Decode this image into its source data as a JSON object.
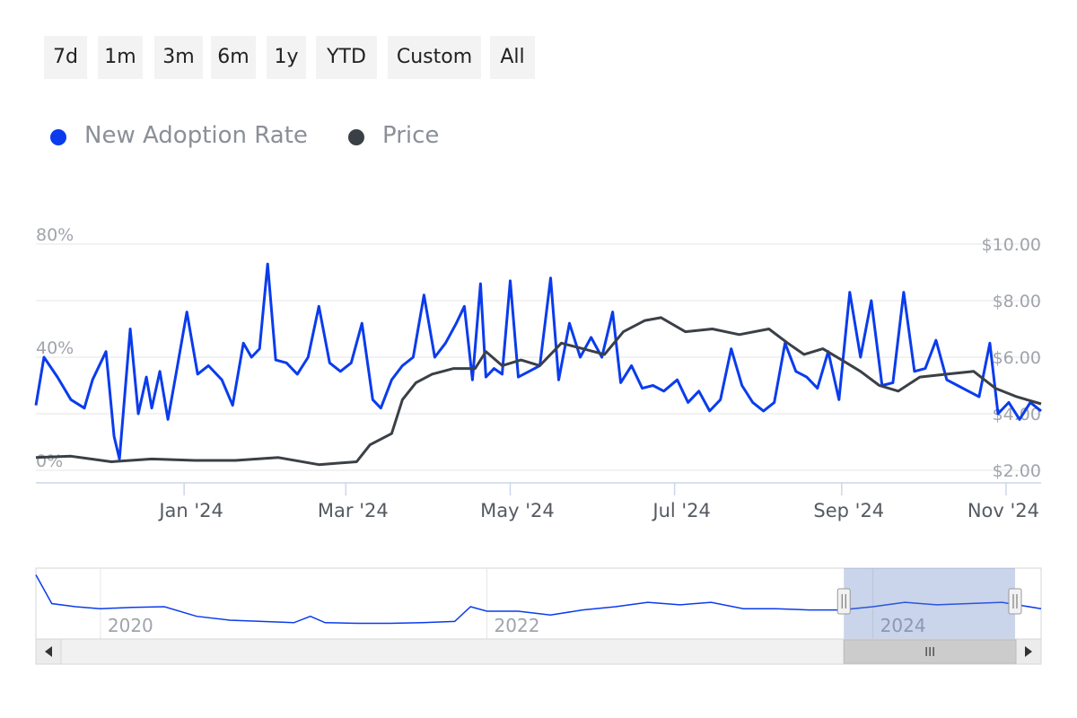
{
  "range_buttons": [
    "7d",
    "1m",
    "3m",
    "6m",
    "1y",
    "YTD",
    "Custom",
    "All"
  ],
  "legend": [
    {
      "label": "New Adoption Rate",
      "color": "#0a3ced"
    },
    {
      "label": "Price",
      "color": "#3b4047"
    }
  ],
  "colors": {
    "adoption": "#0a3ced",
    "price": "#3b4047",
    "grid": "#e6e6e6",
    "axis_label": "#a0a4ab",
    "navigator_mask": "rgba(102,133,194,0.35)",
    "scrollbar": "#f1f1f1"
  },
  "chart_data": {
    "type": "line",
    "x_range": [
      "2023-11-07",
      "2024-11-14"
    ],
    "x_ticks": [
      {
        "date": "2024-01-01",
        "label": "Jan '24"
      },
      {
        "date": "2024-03-01",
        "label": "Mar '24"
      },
      {
        "date": "2024-05-01",
        "label": "May '24"
      },
      {
        "date": "2024-07-01",
        "label": "Jul '24"
      },
      {
        "date": "2024-09-01",
        "label": "Sep '24"
      },
      {
        "date": "2024-11-01",
        "label": "Nov '24"
      }
    ],
    "y_left": {
      "min": 0,
      "max": 80,
      "ticks": [
        0,
        40,
        80
      ],
      "tick_labels": [
        "0%",
        "40%",
        "80%"
      ]
    },
    "y_right": {
      "min": 2,
      "max": 10,
      "ticks": [
        2,
        4,
        6,
        8,
        10
      ],
      "tick_labels": [
        "$2.00",
        "$4.00",
        "$6.00",
        "$8.00",
        "$10.00"
      ]
    },
    "grid": true,
    "legend_position": "top-left",
    "series": [
      {
        "name": "New Adoption Rate",
        "axis": "left",
        "unit": "%",
        "points": [
          [
            "2023-11-07",
            23
          ],
          [
            "2023-11-10",
            40
          ],
          [
            "2023-11-15",
            33
          ],
          [
            "2023-11-20",
            25
          ],
          [
            "2023-11-25",
            22
          ],
          [
            "2023-11-28",
            32
          ],
          [
            "2023-12-03",
            42
          ],
          [
            "2023-12-06",
            12
          ],
          [
            "2023-12-08",
            4
          ],
          [
            "2023-12-12",
            50
          ],
          [
            "2023-12-15",
            20
          ],
          [
            "2023-12-18",
            33
          ],
          [
            "2023-12-20",
            22
          ],
          [
            "2023-12-23",
            35
          ],
          [
            "2023-12-26",
            18
          ],
          [
            "2023-12-29",
            34
          ],
          [
            "2024-01-02",
            56
          ],
          [
            "2024-01-06",
            34
          ],
          [
            "2024-01-10",
            37
          ],
          [
            "2024-01-15",
            32
          ],
          [
            "2024-01-19",
            23
          ],
          [
            "2024-01-23",
            45
          ],
          [
            "2024-01-26",
            40
          ],
          [
            "2024-01-29",
            43
          ],
          [
            "2024-02-01",
            73
          ],
          [
            "2024-02-04",
            39
          ],
          [
            "2024-02-08",
            38
          ],
          [
            "2024-02-12",
            34
          ],
          [
            "2024-02-16",
            40
          ],
          [
            "2024-02-20",
            58
          ],
          [
            "2024-02-24",
            38
          ],
          [
            "2024-02-28",
            35
          ],
          [
            "2024-03-03",
            38
          ],
          [
            "2024-03-07",
            52
          ],
          [
            "2024-03-11",
            25
          ],
          [
            "2024-03-14",
            22
          ],
          [
            "2024-03-18",
            32
          ],
          [
            "2024-03-22",
            37
          ],
          [
            "2024-03-26",
            40
          ],
          [
            "2024-03-30",
            62
          ],
          [
            "2024-04-03",
            40
          ],
          [
            "2024-04-07",
            45
          ],
          [
            "2024-04-11",
            52
          ],
          [
            "2024-04-14",
            58
          ],
          [
            "2024-04-17",
            32
          ],
          [
            "2024-04-20",
            66
          ],
          [
            "2024-04-22",
            33
          ],
          [
            "2024-04-25",
            36
          ],
          [
            "2024-04-28",
            34
          ],
          [
            "2024-05-01",
            67
          ],
          [
            "2024-05-04",
            33
          ],
          [
            "2024-05-08",
            35
          ],
          [
            "2024-05-12",
            37
          ],
          [
            "2024-05-16",
            68
          ],
          [
            "2024-05-19",
            32
          ],
          [
            "2024-05-23",
            52
          ],
          [
            "2024-05-27",
            40
          ],
          [
            "2024-05-31",
            47
          ],
          [
            "2024-06-04",
            40
          ],
          [
            "2024-06-08",
            56
          ],
          [
            "2024-06-11",
            31
          ],
          [
            "2024-06-15",
            37
          ],
          [
            "2024-06-19",
            29
          ],
          [
            "2024-06-23",
            30
          ],
          [
            "2024-06-27",
            28
          ],
          [
            "2024-07-02",
            32
          ],
          [
            "2024-07-06",
            24
          ],
          [
            "2024-07-10",
            28
          ],
          [
            "2024-07-14",
            21
          ],
          [
            "2024-07-18",
            25
          ],
          [
            "2024-07-22",
            43
          ],
          [
            "2024-07-26",
            30
          ],
          [
            "2024-07-30",
            24
          ],
          [
            "2024-08-03",
            21
          ],
          [
            "2024-08-07",
            24
          ],
          [
            "2024-08-11",
            45
          ],
          [
            "2024-08-15",
            35
          ],
          [
            "2024-08-19",
            33
          ],
          [
            "2024-08-23",
            29
          ],
          [
            "2024-08-27",
            42
          ],
          [
            "2024-08-31",
            25
          ],
          [
            "2024-09-04",
            63
          ],
          [
            "2024-09-08",
            40
          ],
          [
            "2024-09-12",
            60
          ],
          [
            "2024-09-16",
            30
          ],
          [
            "2024-09-20",
            31
          ],
          [
            "2024-09-24",
            63
          ],
          [
            "2024-09-28",
            35
          ],
          [
            "2024-10-02",
            36
          ],
          [
            "2024-10-06",
            46
          ],
          [
            "2024-10-10",
            32
          ],
          [
            "2024-10-14",
            30
          ],
          [
            "2024-10-18",
            28
          ],
          [
            "2024-10-22",
            26
          ],
          [
            "2024-10-26",
            45
          ],
          [
            "2024-10-29",
            20
          ],
          [
            "2024-11-02",
            24
          ],
          [
            "2024-11-06",
            18
          ],
          [
            "2024-11-10",
            24
          ],
          [
            "2024-11-14",
            21
          ]
        ]
      },
      {
        "name": "Price",
        "axis": "right",
        "unit": "$",
        "points": [
          [
            "2023-11-07",
            2.45
          ],
          [
            "2023-11-20",
            2.5
          ],
          [
            "2023-12-05",
            2.3
          ],
          [
            "2023-12-20",
            2.4
          ],
          [
            "2024-01-05",
            2.35
          ],
          [
            "2024-01-20",
            2.35
          ],
          [
            "2024-02-05",
            2.45
          ],
          [
            "2024-02-20",
            2.2
          ],
          [
            "2024-03-05",
            2.3
          ],
          [
            "2024-03-10",
            2.9
          ],
          [
            "2024-03-18",
            3.3
          ],
          [
            "2024-03-22",
            4.5
          ],
          [
            "2024-03-27",
            5.1
          ],
          [
            "2024-04-02",
            5.4
          ],
          [
            "2024-04-10",
            5.6
          ],
          [
            "2024-04-18",
            5.6
          ],
          [
            "2024-04-22",
            6.2
          ],
          [
            "2024-04-28",
            5.7
          ],
          [
            "2024-05-05",
            5.9
          ],
          [
            "2024-05-12",
            5.7
          ],
          [
            "2024-05-20",
            6.5
          ],
          [
            "2024-05-28",
            6.3
          ],
          [
            "2024-06-05",
            6.1
          ],
          [
            "2024-06-12",
            6.9
          ],
          [
            "2024-06-20",
            7.3
          ],
          [
            "2024-06-26",
            7.4
          ],
          [
            "2024-07-05",
            6.9
          ],
          [
            "2024-07-15",
            7.0
          ],
          [
            "2024-07-25",
            6.8
          ],
          [
            "2024-08-05",
            7.0
          ],
          [
            "2024-08-12",
            6.5
          ],
          [
            "2024-08-18",
            6.1
          ],
          [
            "2024-08-25",
            6.3
          ],
          [
            "2024-09-01",
            5.9
          ],
          [
            "2024-09-08",
            5.5
          ],
          [
            "2024-09-15",
            5.0
          ],
          [
            "2024-09-22",
            4.8
          ],
          [
            "2024-09-30",
            5.3
          ],
          [
            "2024-10-10",
            5.4
          ],
          [
            "2024-10-20",
            5.5
          ],
          [
            "2024-10-28",
            4.9
          ],
          [
            "2024-11-05",
            4.6
          ],
          [
            "2024-11-14",
            4.35
          ]
        ]
      }
    ],
    "navigator": {
      "x_ticks": [
        {
          "date": "2020-01-01",
          "label": "2020"
        },
        {
          "date": "2022-01-01",
          "label": "2022"
        },
        {
          "date": "2024-01-01",
          "label": "2024"
        }
      ],
      "x_range": [
        "2019-09-01",
        "2024-11-14"
      ],
      "selection": [
        "2023-11-07",
        "2024-11-14"
      ],
      "series": [
        {
          "name": "New Adoption Rate",
          "points": [
            [
              "2019-09-01",
              95
            ],
            [
              "2019-10-01",
              50
            ],
            [
              "2019-11-15",
              45
            ],
            [
              "2020-01-01",
              42
            ],
            [
              "2020-03-01",
              44
            ],
            [
              "2020-05-01",
              45
            ],
            [
              "2020-07-01",
              30
            ],
            [
              "2020-09-01",
              24
            ],
            [
              "2020-11-01",
              22
            ],
            [
              "2021-01-01",
              20
            ],
            [
              "2021-02-01",
              30
            ],
            [
              "2021-03-01",
              20
            ],
            [
              "2021-05-01",
              19
            ],
            [
              "2021-07-01",
              19
            ],
            [
              "2021-09-01",
              20
            ],
            [
              "2021-11-01",
              22
            ],
            [
              "2021-12-01",
              45
            ],
            [
              "2022-01-01",
              38
            ],
            [
              "2022-03-01",
              38
            ],
            [
              "2022-05-01",
              32
            ],
            [
              "2022-07-01",
              40
            ],
            [
              "2022-09-01",
              45
            ],
            [
              "2022-11-01",
              52
            ],
            [
              "2023-01-01",
              48
            ],
            [
              "2023-03-01",
              52
            ],
            [
              "2023-05-01",
              42
            ],
            [
              "2023-07-01",
              42
            ],
            [
              "2023-09-01",
              40
            ],
            [
              "2023-11-01",
              40
            ],
            [
              "2024-01-01",
              45
            ],
            [
              "2024-03-01",
              52
            ],
            [
              "2024-05-01",
              48
            ],
            [
              "2024-07-01",
              50
            ],
            [
              "2024-09-01",
              52
            ],
            [
              "2024-11-14",
              42
            ]
          ]
        }
      ]
    }
  }
}
